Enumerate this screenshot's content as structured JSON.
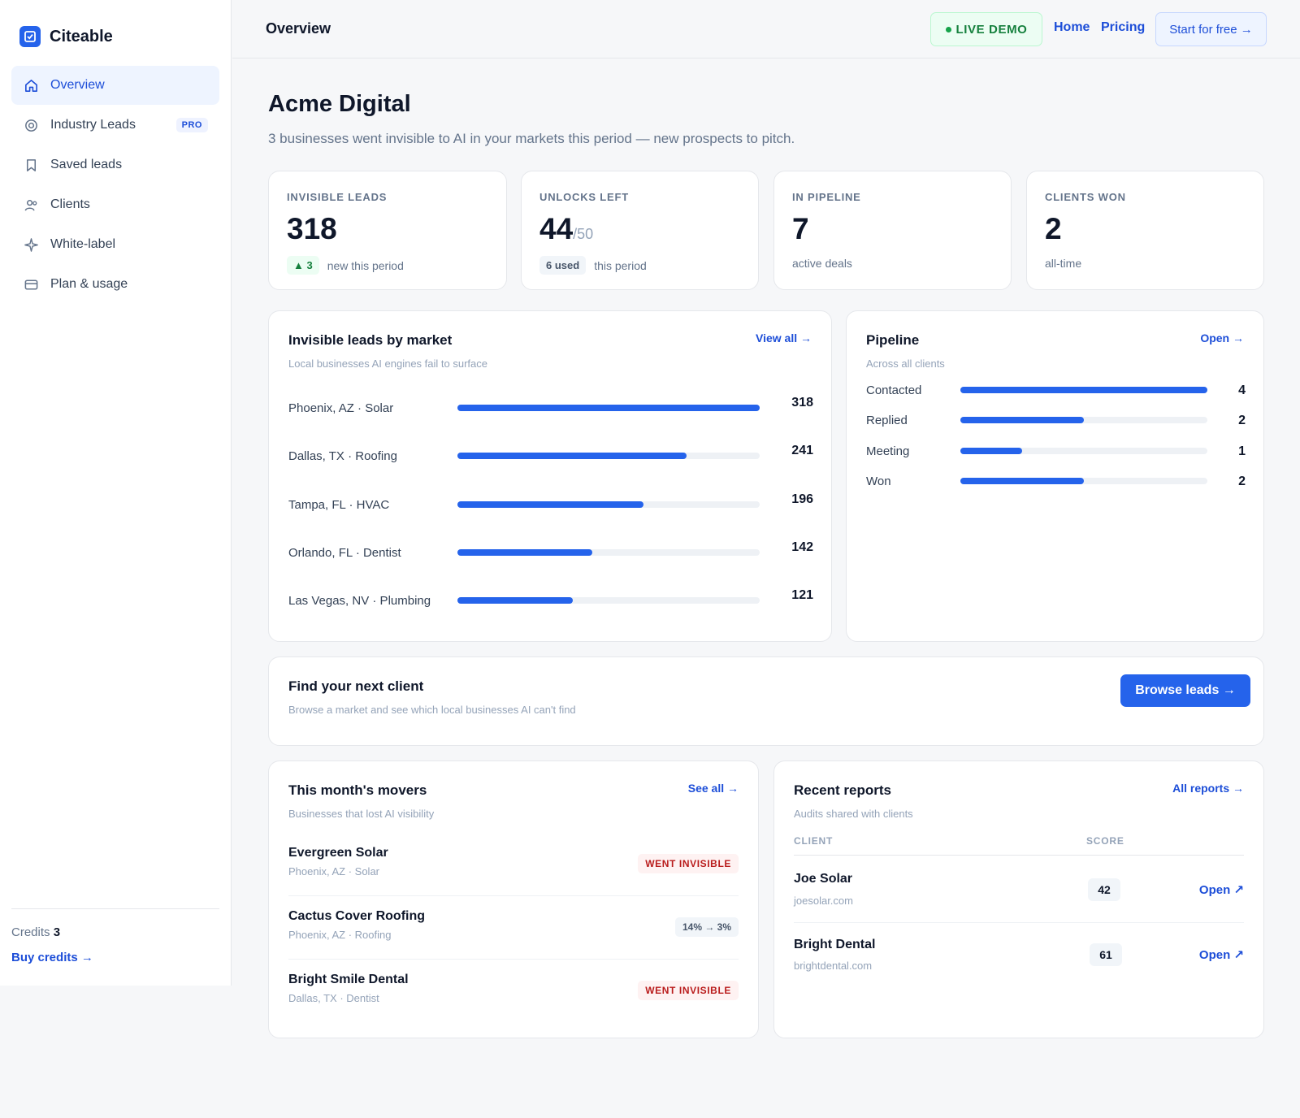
{
  "app": {
    "name": "Citeable"
  },
  "sidebar": {
    "items": [
      {
        "label": "Overview",
        "icon": "home-icon",
        "active": true
      },
      {
        "label": "Industry Leads",
        "icon": "target-icon",
        "badge": "PRO"
      },
      {
        "label": "Saved leads",
        "icon": "bookmark-icon"
      },
      {
        "label": "Clients",
        "icon": "users-icon"
      },
      {
        "label": "White-label",
        "icon": "sparkle-icon"
      },
      {
        "label": "Plan & usage",
        "icon": "credit-card-icon"
      }
    ],
    "credits_label": "Credits",
    "credits_value": "3",
    "buy_label": "Buy credits →"
  },
  "topbar": {
    "title": "Overview",
    "live_label": "LIVE DEMO",
    "home_label": "Home",
    "pricing_label": "Pricing",
    "start_label": "Start for free →"
  },
  "header": {
    "title": "Acme Digital",
    "subtitle": "3 businesses went invisible to AI in your markets this period — new prospects to pitch."
  },
  "stats": [
    {
      "label": "INVISIBLE LEADS",
      "value": "318",
      "chip": "▲ 3",
      "foot": "new this period"
    },
    {
      "label": "UNLOCKS LEFT",
      "value": "44",
      "suffix": "/50",
      "chip": "6 used",
      "foot": "this period"
    },
    {
      "label": "IN PIPELINE",
      "value": "7",
      "foot": "active deals"
    },
    {
      "label": "CLIENTS WON",
      "value": "2",
      "foot": "all-time"
    }
  ],
  "markets": {
    "title": "Invisible leads by market",
    "subtitle": "Local businesses AI engines fail to surface",
    "link": "View all →"
  },
  "pipeline": {
    "title": "Pipeline",
    "subtitle": "Across all clients",
    "link": "Open →"
  },
  "chart_data": [
    {
      "type": "bar",
      "categories": [
        "Phoenix, AZ · Solar",
        "Dallas, TX · Roofing",
        "Tampa, FL · HVAC",
        "Orlando, FL · Dentist",
        "Las Vegas, NV · Plumbing"
      ],
      "values": [
        318,
        241,
        196,
        142,
        121
      ],
      "title": "Invisible leads by market",
      "xlim": [
        0,
        318
      ]
    },
    {
      "type": "bar",
      "categories": [
        "Contacted",
        "Replied",
        "Meeting",
        "Won"
      ],
      "values": [
        4,
        2,
        1,
        2
      ],
      "title": "Pipeline",
      "xlim": [
        0,
        4
      ]
    }
  ],
  "cta": {
    "title": "Find your next client",
    "subtitle": "Browse a market and see which local businesses AI can't find",
    "button": "Browse leads →"
  },
  "movers": {
    "title": "This month's movers",
    "subtitle": "Businesses that lost AI visibility",
    "link": "See all →",
    "items": [
      {
        "name": "Evergreen Solar",
        "location": "Phoenix, AZ · Solar",
        "badge": "WENT INVISIBLE",
        "badge_type": "red"
      },
      {
        "name": "Cactus Cover Roofing",
        "location": "Phoenix, AZ · Roofing",
        "badge": "14% → 3%",
        "badge_type": "gray"
      },
      {
        "name": "Bright Smile Dental",
        "location": "Dallas, TX · Dentist",
        "badge": "WENT INVISIBLE",
        "badge_type": "red"
      }
    ]
  },
  "reports": {
    "title": "Recent reports",
    "subtitle": "Audits shared with clients",
    "link": "All reports →",
    "col_client": "CLIENT",
    "col_score": "SCORE",
    "rows": [
      {
        "name": "Joe Solar",
        "domain": "joesolar.com",
        "score": "42",
        "action": "Open ↗"
      },
      {
        "name": "Bright Dental",
        "domain": "brightdental.com",
        "score": "61",
        "action": "Open ↗"
      }
    ]
  },
  "colors": {
    "accent": "#2563eb",
    "success": "#15803d",
    "danger": "#b91c1c"
  }
}
